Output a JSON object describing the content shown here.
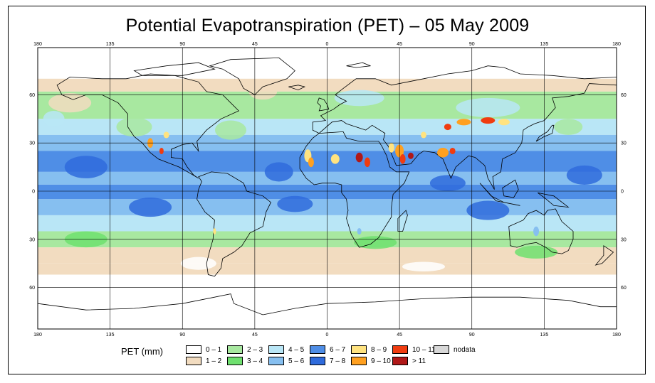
{
  "title": "Potential Evapotranspiration (PET) – 05 May 2009",
  "axes": {
    "lon_top": [
      "180",
      "135",
      "90",
      "45",
      "0",
      "45",
      "90",
      "135",
      "180"
    ],
    "lon_bottom": [
      "180",
      "135",
      "90",
      "45",
      "0",
      "45",
      "90",
      "135",
      "180"
    ],
    "lat_left": [
      "60",
      "30",
      "0",
      "30",
      "60"
    ],
    "lat_right": [
      "60",
      "30",
      "0",
      "30",
      "60"
    ]
  },
  "legend": {
    "title": "PET (mm)",
    "items": [
      {
        "label": "0 – 1",
        "color": "#ffffff"
      },
      {
        "label": "1 – 2",
        "color": "#f2dcc0"
      },
      {
        "label": "2 – 3",
        "color": "#a8e8a0"
      },
      {
        "label": "3 – 4",
        "color": "#6fe06f"
      },
      {
        "label": "4 – 5",
        "color": "#b9e6f6"
      },
      {
        "label": "5 – 6",
        "color": "#86bff0"
      },
      {
        "label": "6 – 7",
        "color": "#4f8ee6"
      },
      {
        "label": "7 – 8",
        "color": "#2f6bdc"
      },
      {
        "label": "8 – 9",
        "color": "#ffe380"
      },
      {
        "label": "9 – 10",
        "color": "#ffa020"
      },
      {
        "label": "10 – 11",
        "color": "#f03c10"
      },
      {
        "label": "> 11",
        "color": "#b01818"
      },
      {
        "label": "nodata",
        "color": "#d8d8d8"
      }
    ]
  }
}
